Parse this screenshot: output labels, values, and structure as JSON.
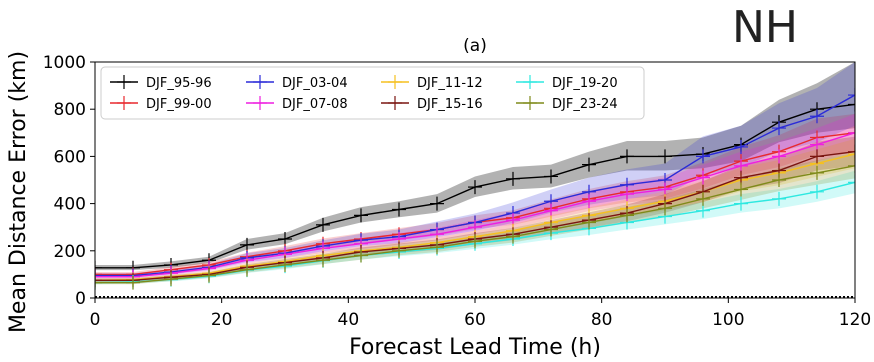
{
  "panel_label": "(a)",
  "region_label": "NH",
  "chart_data": {
    "type": "line",
    "xlabel": "Forecast Lead Time (h)",
    "ylabel": "Mean Distance Error (km)",
    "xlim": [
      0,
      120
    ],
    "ylim": [
      0,
      1000
    ],
    "xticks": [
      0,
      20,
      40,
      60,
      80,
      100,
      120
    ],
    "yticks": [
      0,
      200,
      400,
      600,
      800,
      1000
    ],
    "grid": false,
    "legend_position": "top-left",
    "legend_columns": 4,
    "x": [
      0,
      6,
      12,
      18,
      24,
      30,
      36,
      42,
      48,
      54,
      60,
      66,
      72,
      78,
      84,
      90,
      96,
      102,
      108,
      114,
      120
    ],
    "series": [
      {
        "name": "DJF_95-96",
        "color": "#000000",
        "values": [
          128,
          128,
          140,
          160,
          225,
          250,
          310,
          350,
          375,
          400,
          470,
          505,
          515,
          565,
          600,
          600,
          610,
          650,
          745,
          800,
          820
        ],
        "lower": [
          118,
          118,
          128,
          148,
          205,
          228,
          282,
          320,
          342,
          362,
          428,
          460,
          468,
          510,
          540,
          540,
          550,
          580,
          660,
          700,
          720
        ],
        "upper": [
          140,
          140,
          155,
          175,
          250,
          275,
          340,
          385,
          410,
          440,
          515,
          555,
          565,
          620,
          665,
          665,
          680,
          730,
          840,
          910,
          1000
        ]
      },
      {
        "name": "DJF_99-00",
        "color": "#e8292e",
        "values": [
          100,
          100,
          120,
          140,
          175,
          200,
          230,
          250,
          270,
          290,
          320,
          340,
          380,
          420,
          450,
          470,
          520,
          580,
          620,
          680,
          700
        ],
        "lower": [
          92,
          92,
          110,
          128,
          160,
          182,
          210,
          228,
          246,
          264,
          292,
          310,
          345,
          380,
          405,
          420,
          465,
          520,
          555,
          605,
          620
        ],
        "upper": [
          110,
          110,
          132,
          152,
          192,
          220,
          252,
          275,
          296,
          318,
          350,
          372,
          418,
          462,
          495,
          520,
          575,
          640,
          690,
          760,
          780
        ]
      },
      {
        "name": "DJF_03-04",
        "color": "#2b2bd8",
        "values": [
          95,
          95,
          110,
          130,
          170,
          190,
          220,
          245,
          260,
          290,
          320,
          360,
          410,
          450,
          480,
          500,
          600,
          640,
          720,
          770,
          860
        ],
        "lower": [
          87,
          87,
          100,
          118,
          152,
          170,
          198,
          220,
          232,
          258,
          285,
          318,
          362,
          395,
          420,
          435,
          520,
          555,
          620,
          660,
          730
        ],
        "upper": [
          105,
          105,
          122,
          143,
          190,
          212,
          244,
          272,
          290,
          324,
          358,
          405,
          460,
          510,
          545,
          570,
          685,
          730,
          825,
          890,
          1000
        ]
      },
      {
        "name": "DJF_07-08",
        "color": "#ee1fe0",
        "values": [
          90,
          90,
          105,
          125,
          160,
          185,
          210,
          230,
          250,
          270,
          300,
          330,
          370,
          410,
          440,
          460,
          510,
          560,
          600,
          650,
          700
        ],
        "lower": [
          82,
          82,
          96,
          114,
          146,
          168,
          190,
          208,
          226,
          244,
          270,
          296,
          332,
          368,
          394,
          410,
          455,
          500,
          535,
          580,
          620
        ],
        "upper": [
          99,
          99,
          115,
          137,
          175,
          203,
          231,
          253,
          275,
          297,
          330,
          364,
          408,
          452,
          486,
          510,
          565,
          620,
          665,
          720,
          780
        ]
      },
      {
        "name": "DJF_11-12",
        "color": "#f5c020",
        "values": [
          75,
          78,
          90,
          105,
          135,
          155,
          180,
          200,
          215,
          235,
          260,
          285,
          320,
          350,
          380,
          410,
          450,
          500,
          530,
          570,
          610
        ],
        "lower": [
          68,
          71,
          82,
          96,
          123,
          141,
          164,
          182,
          196,
          214,
          236,
          258,
          290,
          316,
          344,
          370,
          406,
          452,
          478,
          514,
          550
        ],
        "upper": [
          83,
          86,
          99,
          115,
          148,
          170,
          197,
          219,
          235,
          257,
          285,
          313,
          351,
          384,
          418,
          452,
          497,
          552,
          585,
          630,
          675
        ]
      },
      {
        "name": "DJF_15-16",
        "color": "#7a1510",
        "values": [
          75,
          75,
          88,
          100,
          130,
          150,
          170,
          195,
          210,
          225,
          250,
          270,
          300,
          330,
          360,
          400,
          450,
          510,
          540,
          600,
          620
        ],
        "lower": [
          68,
          68,
          80,
          91,
          118,
          136,
          154,
          177,
          191,
          204,
          227,
          245,
          272,
          298,
          325,
          361,
          406,
          460,
          487,
          541,
          560
        ],
        "upper": [
          83,
          83,
          97,
          110,
          143,
          165,
          187,
          214,
          231,
          248,
          275,
          297,
          330,
          363,
          396,
          440,
          495,
          562,
          596,
          662,
          684
        ]
      },
      {
        "name": "DJF_19-20",
        "color": "#2ee8e0",
        "values": [
          65,
          68,
          78,
          92,
          118,
          135,
          158,
          180,
          195,
          210,
          230,
          250,
          275,
          295,
          320,
          345,
          370,
          400,
          420,
          450,
          490
        ],
        "lower": [
          58,
          61,
          70,
          83,
          106,
          122,
          143,
          163,
          177,
          190,
          208,
          226,
          249,
          267,
          290,
          312,
          335,
          362,
          380,
          408,
          444
        ],
        "upper": [
          72,
          75,
          86,
          101,
          130,
          149,
          174,
          198,
          214,
          231,
          253,
          275,
          302,
          324,
          352,
          379,
          407,
          440,
          462,
          495,
          539
        ]
      },
      {
        "name": "DJF_23-24",
        "color": "#7f8a1a",
        "values": [
          65,
          65,
          80,
          95,
          120,
          140,
          160,
          180,
          200,
          215,
          240,
          260,
          290,
          320,
          350,
          380,
          420,
          460,
          500,
          530,
          560
        ],
        "lower": [
          58,
          58,
          72,
          86,
          108,
          126,
          144,
          162,
          181,
          195,
          217,
          235,
          263,
          290,
          317,
          344,
          380,
          416,
          453,
          480,
          507
        ],
        "upper": [
          72,
          72,
          88,
          104,
          132,
          154,
          176,
          198,
          220,
          236,
          264,
          286,
          319,
          352,
          385,
          418,
          462,
          506,
          550,
          583,
          616
        ]
      }
    ]
  }
}
